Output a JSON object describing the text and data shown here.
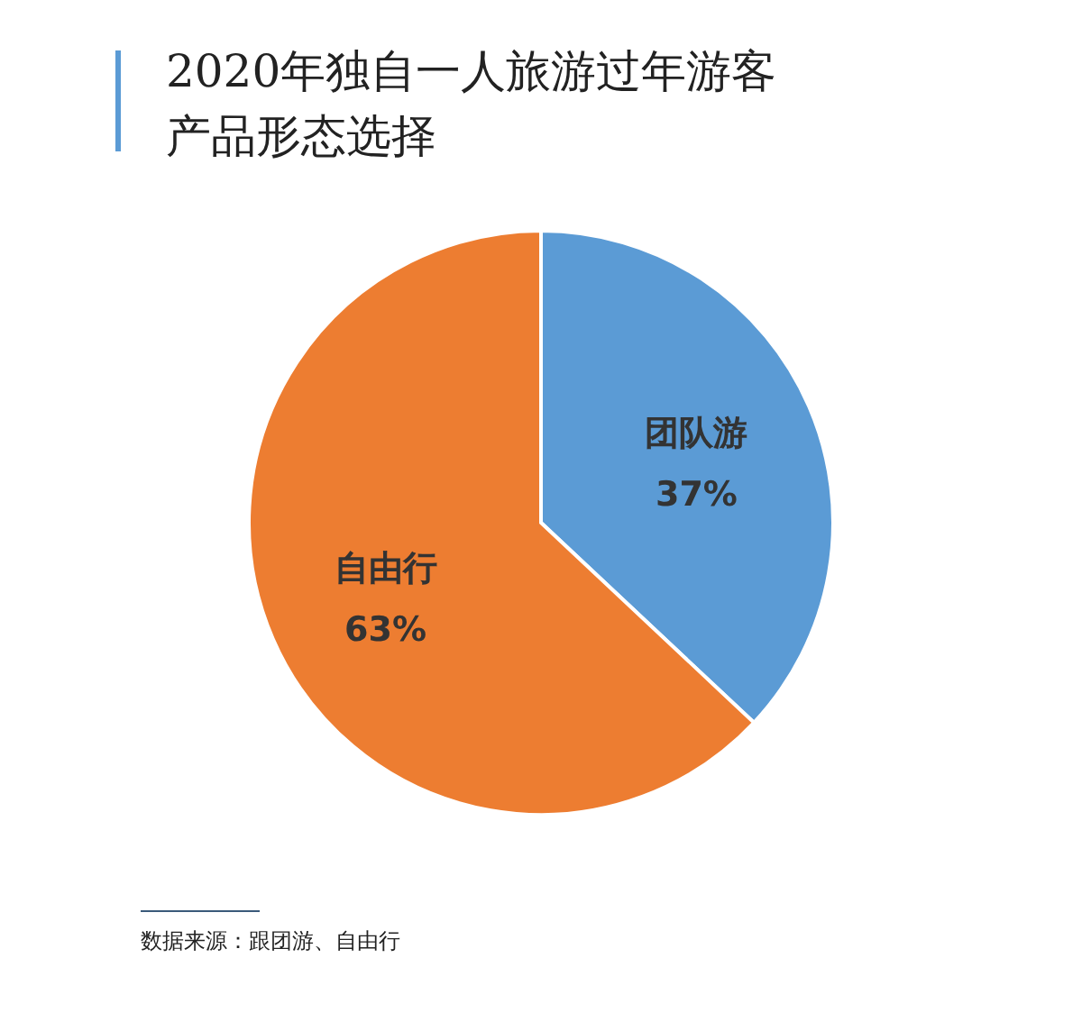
{
  "chart_data": {
    "type": "pie",
    "title": "2020年独自一人旅游过年游客产品形态选择",
    "categories": [
      "团队游",
      "自由行"
    ],
    "values": [
      37,
      63
    ],
    "colors": [
      "#5b9bd5",
      "#ed7d31"
    ],
    "value_labels": [
      "37%",
      "63%"
    ],
    "legend": false,
    "annotations": [
      "数据来源：跟团游、自由行"
    ]
  }
}
